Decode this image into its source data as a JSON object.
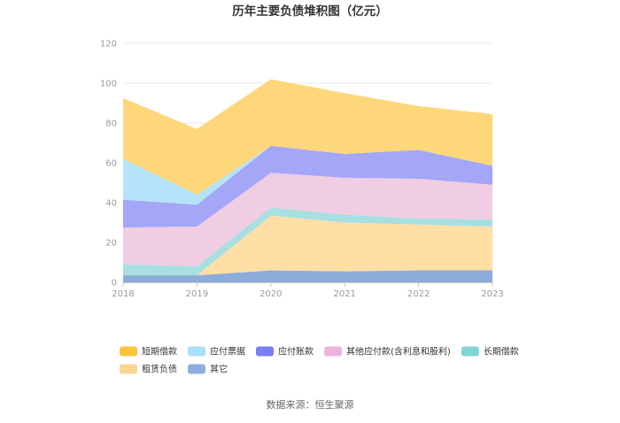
{
  "title": "历年主要负债堆积图（亿元）",
  "source": "数据来源：恒生聚源",
  "chart_data": {
    "type": "area",
    "stacked": true,
    "title": "历年主要负债堆积图（亿元）",
    "x": [
      "2018",
      "2019",
      "2020",
      "2021",
      "2022",
      "2023"
    ],
    "ylim": [
      0,
      120
    ],
    "yticks": [
      0,
      20,
      40,
      60,
      80,
      100,
      120
    ],
    "grid": true,
    "legend_position": "bottom",
    "series": [
      {
        "name": "其它",
        "color": "#8eacd9",
        "values": [
          3.5,
          3.5,
          6.0,
          5.5,
          6.0,
          6.0
        ]
      },
      {
        "name": "租赁负债",
        "color": "#ffdfa6",
        "values": [
          0,
          0,
          27.5,
          24.5,
          23.0,
          22.0
        ]
      },
      {
        "name": "长期借款",
        "color": "#a8dfe0",
        "values": [
          5.5,
          4.5,
          4.0,
          4.0,
          3.0,
          3.5
        ]
      },
      {
        "name": "其他应付款(含利息和股利)",
        "color": "#f0cde3",
        "values": [
          18.5,
          20.0,
          17.5,
          18.5,
          20.0,
          17.5
        ]
      },
      {
        "name": "应付账款",
        "color": "#a4a6f7",
        "values": [
          14.0,
          11.0,
          13.5,
          12.0,
          14.5,
          9.5
        ]
      },
      {
        "name": "应付票据",
        "color": "#b5e3fa",
        "values": [
          20.5,
          5.0,
          0,
          0,
          0,
          0
        ]
      },
      {
        "name": "短期借款",
        "color": "#fed77b",
        "values": [
          30.5,
          33.0,
          33.5,
          30.5,
          22.0,
          26.0
        ]
      }
    ]
  },
  "legend": {
    "row1": [
      {
        "name": "短期借款",
        "color": "#fcc43c"
      },
      {
        "name": "应付票据",
        "color": "#a6e0fb"
      },
      {
        "name": "应付账款",
        "color": "#7b7ef2"
      },
      {
        "name": "其他应付款(含利息和股利)",
        "color": "#ebb4dc"
      },
      {
        "name": "长期借款",
        "color": "#7fd6d6"
      }
    ],
    "row2": [
      {
        "name": "租赁负债",
        "color": "#fdd591"
      },
      {
        "name": "其它",
        "color": "#8daee0"
      }
    ]
  }
}
